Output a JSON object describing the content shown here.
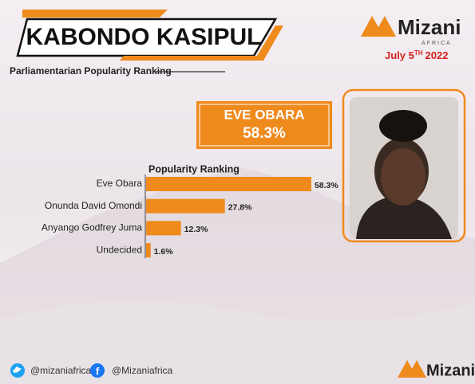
{
  "header": {
    "title": "KABONDO KASIPUL",
    "subtitle": "Parliamentarian Popularity Ranking"
  },
  "brand": {
    "name": "Mizani",
    "tagline": "AFRICA"
  },
  "date": {
    "day": "July 5",
    "suffix": "TH",
    "year": "2022"
  },
  "leader": {
    "name": "EVE OBARA",
    "share": "58.3%"
  },
  "chart_data": {
    "type": "bar",
    "orientation": "horizontal",
    "title": "Popularity Ranking",
    "categories": [
      "Eve Obara",
      "Onunda David Omondi",
      "Anyango Godfrey Juma",
      "Undecided"
    ],
    "values": [
      58.3,
      27.8,
      12.3,
      1.6
    ],
    "value_labels": [
      "58.3%",
      "27.8%",
      "12.3%",
      "1.6%"
    ],
    "color": "#ef8a1d"
  },
  "footer": {
    "twitter": "@mizaniafrica",
    "facebook": "@Mizaniafrica"
  }
}
